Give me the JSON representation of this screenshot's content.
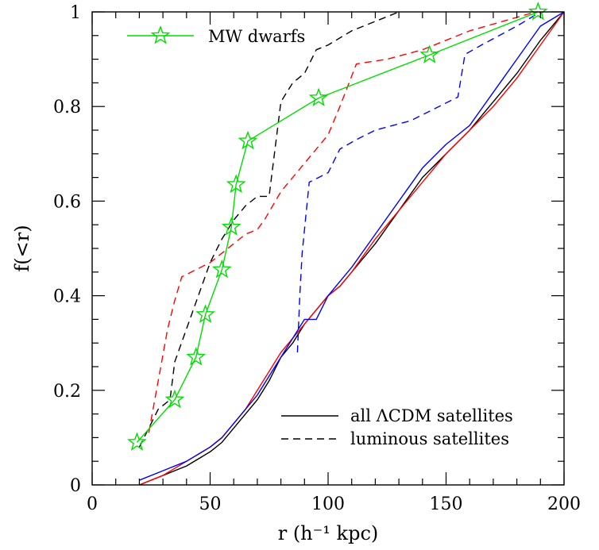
{
  "chart_data": {
    "type": "line",
    "title": "",
    "xlabel": "r (h⁻¹ kpc)",
    "ylabel": "f(<r)",
    "xlim": [
      0,
      200
    ],
    "ylim": [
      0,
      1
    ],
    "xticks": [
      0,
      50,
      100,
      150,
      200
    ],
    "xtick_labels": [
      "0",
      "50",
      "100",
      "150",
      "200"
    ],
    "yticks": [
      0,
      0.2,
      0.4,
      0.6,
      0.8,
      1
    ],
    "ytick_labels": [
      "0",
      "0.2",
      "0.4",
      "0.6",
      "0.8",
      "1"
    ],
    "grid": false,
    "legend": [
      {
        "label": "MW dwarfs",
        "style": "solid-star",
        "color": "#00dd00",
        "placement": "top-left"
      },
      {
        "label": "all ΛCDM satellites",
        "style": "solid",
        "color": "#000000",
        "placement": "bottom-right"
      },
      {
        "label": "luminous satellites",
        "style": "dashed",
        "color": "#000000",
        "placement": "bottom-right"
      }
    ],
    "series": [
      {
        "name": "MW dwarfs",
        "color": "#00dd00",
        "dash": "solid",
        "marker": "star",
        "x": [
          19,
          35,
          44,
          48,
          55,
          59,
          61,
          66,
          96,
          143,
          189
        ],
        "y": [
          0.09,
          0.18,
          0.27,
          0.36,
          0.455,
          0.545,
          0.635,
          0.727,
          0.818,
          0.909,
          1.0
        ]
      },
      {
        "color": "#000000",
        "dash": "dashed",
        "x": [
          20,
          25,
          28,
          33,
          35,
          40,
          45,
          50,
          55,
          60,
          65,
          70,
          75,
          80,
          85,
          90,
          95,
          100,
          110,
          120,
          130
        ],
        "y": [
          0.08,
          0.13,
          0.16,
          0.18,
          0.26,
          0.33,
          0.4,
          0.47,
          0.52,
          0.56,
          0.59,
          0.61,
          0.61,
          0.81,
          0.85,
          0.87,
          0.92,
          0.93,
          0.96,
          0.98,
          1.0
        ]
      },
      {
        "color": "#ff0000",
        "dash": "dashed",
        "x": [
          24,
          28,
          32,
          35,
          38,
          50,
          60,
          65,
          70,
          73,
          80,
          90,
          100,
          105,
          112,
          125,
          140,
          160,
          188
        ],
        "y": [
          0.11,
          0.22,
          0.33,
          0.39,
          0.44,
          0.47,
          0.51,
          0.53,
          0.54,
          0.56,
          0.62,
          0.68,
          0.74,
          0.8,
          0.89,
          0.9,
          0.92,
          0.96,
          1.0
        ]
      },
      {
        "color": "#0000ff",
        "dash": "dashed",
        "x": [
          87,
          88,
          89,
          92,
          96,
          100,
          105,
          112,
          120,
          135,
          155,
          158,
          165,
          180,
          190
        ],
        "y": [
          0.28,
          0.4,
          0.49,
          0.64,
          0.65,
          0.66,
          0.71,
          0.73,
          0.75,
          0.77,
          0.82,
          0.91,
          0.93,
          0.97,
          1.0
        ]
      },
      {
        "color": "#000000",
        "dash": "solid",
        "x": [
          20,
          30,
          40,
          50,
          55,
          60,
          65,
          70,
          75,
          80,
          85,
          90,
          95,
          100,
          105,
          110,
          120,
          130,
          140,
          150,
          160,
          170,
          180,
          190,
          200
        ],
        "y": [
          0.0,
          0.02,
          0.04,
          0.07,
          0.09,
          0.12,
          0.15,
          0.18,
          0.22,
          0.27,
          0.3,
          0.34,
          0.37,
          0.4,
          0.42,
          0.45,
          0.51,
          0.58,
          0.65,
          0.7,
          0.75,
          0.81,
          0.87,
          0.94,
          1.0
        ]
      },
      {
        "color": "#ff0000",
        "dash": "solid",
        "x": [
          20,
          30,
          40,
          50,
          55,
          60,
          65,
          70,
          75,
          80,
          85,
          90,
          95,
          100,
          105,
          110,
          120,
          130,
          140,
          150,
          160,
          170,
          180,
          190,
          200
        ],
        "y": [
          0.0,
          0.02,
          0.05,
          0.08,
          0.1,
          0.13,
          0.16,
          0.2,
          0.24,
          0.28,
          0.31,
          0.34,
          0.37,
          0.4,
          0.42,
          0.45,
          0.52,
          0.58,
          0.64,
          0.7,
          0.75,
          0.8,
          0.86,
          0.93,
          1.0
        ]
      },
      {
        "color": "#0000ff",
        "dash": "solid",
        "x": [
          20,
          30,
          40,
          50,
          55,
          60,
          65,
          70,
          75,
          80,
          85,
          90,
          95,
          100,
          105,
          110,
          120,
          130,
          140,
          150,
          160,
          170,
          180,
          190,
          200
        ],
        "y": [
          0.01,
          0.03,
          0.05,
          0.08,
          0.1,
          0.13,
          0.16,
          0.19,
          0.23,
          0.27,
          0.31,
          0.35,
          0.35,
          0.4,
          0.43,
          0.46,
          0.53,
          0.6,
          0.67,
          0.72,
          0.76,
          0.83,
          0.9,
          0.97,
          1.0
        ]
      }
    ]
  }
}
